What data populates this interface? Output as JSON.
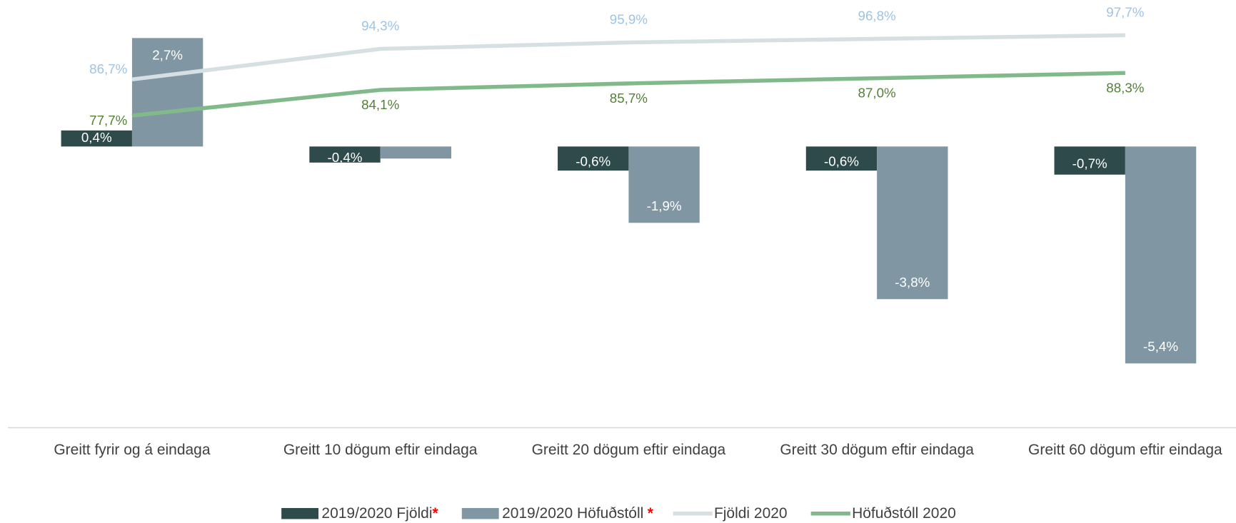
{
  "chart_data": {
    "type": "bar_line",
    "categories": [
      "Greitt fyrir og á eindaga",
      "Greitt 10 dögum eftir eindaga",
      "Greitt 20 dögum eftir eindaga",
      "Greitt 30 dögum eftir eindaga",
      "Greitt 60 dögum eftir eindaga"
    ],
    "ylim": [
      -7,
      3.5
    ],
    "y2lim": [
      0,
      105
    ],
    "note_marker": "*",
    "note_marker_color": "#ff0000",
    "series": [
      {
        "name": "2019/2020 Fjöldi",
        "type": "bar",
        "color": "#2f4a4a",
        "label_color": "#ffffff",
        "marker": true,
        "values": [
          0.4,
          -0.4,
          -0.6,
          -0.6,
          -0.7
        ],
        "value_labels": [
          "0,4%",
          "-0,4%",
          "-0,6%",
          "-0,6%",
          "-0,7%"
        ]
      },
      {
        "name": "2019/2020 Höfuðstóll",
        "type": "bar",
        "color": "#8097a3",
        "label_color": "#ffffff",
        "marker": true,
        "values": [
          2.7,
          -0.3,
          -1.9,
          -3.8,
          -5.4
        ],
        "value_labels": [
          "2,7%",
          null,
          "-1,9%",
          "-3,8%",
          "-5,4%"
        ]
      },
      {
        "name": "Fjöldi 2020",
        "type": "line",
        "axis": "y2",
        "color": "#d6e0e3",
        "label_color": "#9dc3e6",
        "label_side": "above",
        "values": [
          86.7,
          94.3,
          95.9,
          96.8,
          97.7
        ],
        "value_labels": [
          "86,7%",
          "94,3%",
          "95,9%",
          "96,8%",
          "97,7%"
        ]
      },
      {
        "name": "Höfuðstóll 2020",
        "type": "line",
        "axis": "y2",
        "color": "#82b98a",
        "label_color": "#538135",
        "label_side": "below",
        "values": [
          77.7,
          84.1,
          85.7,
          87.0,
          88.3
        ],
        "value_labels": [
          "77,7%",
          "84,1%",
          "85,7%",
          "87,0%",
          "88,3%"
        ]
      }
    ]
  }
}
